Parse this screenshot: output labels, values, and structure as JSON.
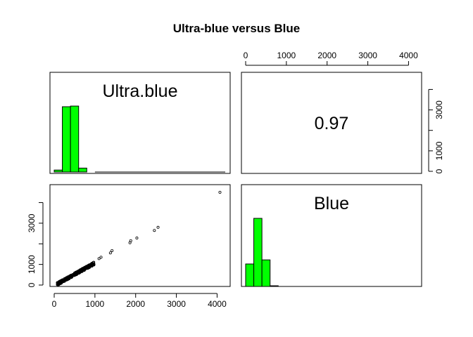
{
  "colors": {
    "bar_fill": "#00ff00",
    "axis": "#000000",
    "background": "#ffffff"
  },
  "chart_data": {
    "type": "scatter",
    "title": "Ultra-blue versus Blue",
    "variables": [
      "Ultra.blue",
      "Blue"
    ],
    "correlation_label": "0.97",
    "grid": false,
    "xlim": [
      0,
      4200
    ],
    "ylim": [
      0,
      4700
    ],
    "x_ticks": [
      "0",
      "1000",
      "2000",
      "3000",
      "4000"
    ],
    "y_ticks": [
      "0",
      "1000",
      "3000"
    ],
    "right_axis_ticks": [
      "0",
      "1000",
      "3000"
    ],
    "top_axis_ticks": [
      "0",
      "1000",
      "2000",
      "3000",
      "4000"
    ],
    "histogram_ultra_blue": {
      "bin_edges": [
        0,
        200,
        400,
        600,
        800,
        1000
      ],
      "counts": [
        0.03,
        1.0,
        1.01,
        0.06,
        0.0
      ]
    },
    "histogram_blue": {
      "bin_edges": [
        0,
        200,
        400,
        600,
        800,
        1000
      ],
      "counts": [
        0.33,
        1.0,
        0.39,
        0.01,
        0.0
      ]
    },
    "scatter_outliers": [
      {
        "x": 1100,
        "y": 1280
      },
      {
        "x": 1150,
        "y": 1350
      },
      {
        "x": 1380,
        "y": 1560
      },
      {
        "x": 1420,
        "y": 1670
      },
      {
        "x": 1860,
        "y": 2050
      },
      {
        "x": 1880,
        "y": 2150
      },
      {
        "x": 2030,
        "y": 2280
      },
      {
        "x": 2460,
        "y": 2650
      },
      {
        "x": 2550,
        "y": 2800
      },
      {
        "x": 4070,
        "y": 4500
      }
    ]
  }
}
